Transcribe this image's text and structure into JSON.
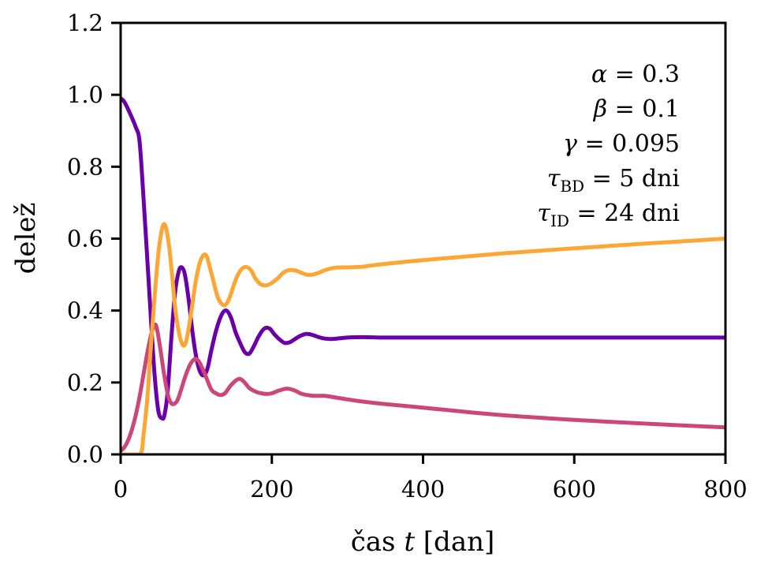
{
  "chart_data": {
    "type": "line",
    "title": "",
    "xlabel_parts": [
      "čas",
      "t",
      "[dan]"
    ],
    "xlabel": "čas t [dan]",
    "ylabel": "delež",
    "xlim": [
      0,
      800
    ],
    "ylim": [
      0,
      1.2
    ],
    "xticks": [
      0,
      200,
      400,
      600,
      800
    ],
    "xtick_labels": [
      "0",
      "200",
      "400",
      "600",
      "800"
    ],
    "yticks": [
      0.0,
      0.2,
      0.4,
      0.6,
      0.8,
      1.0,
      1.2
    ],
    "ytick_labels": [
      "0.0",
      "0.2",
      "0.4",
      "0.6",
      "0.8",
      "1.0",
      "1.2"
    ],
    "grid": false,
    "legend": "none",
    "annotations": [
      {
        "symbol": "α",
        "sub": "",
        "value": "= 0.3"
      },
      {
        "symbol": "β",
        "sub": "",
        "value": "= 0.1"
      },
      {
        "symbol": "γ",
        "sub": "",
        "value": "= 0.095"
      },
      {
        "symbol": "τ",
        "sub": "BD",
        "value": "= 5 dni"
      },
      {
        "symbol": "τ",
        "sub": "ID",
        "value": "= 24 dni"
      }
    ],
    "series": [
      {
        "name": "series-purple",
        "color": "#6a00a8",
        "x": [
          0,
          5,
          12,
          20,
          25,
          30,
          35,
          40,
          45,
          50,
          55,
          58,
          62,
          67,
          72,
          77,
          81,
          85,
          90,
          95,
          100,
          105,
          110,
          115,
          120,
          127,
          134,
          140,
          146,
          152,
          158,
          164,
          170,
          176,
          183,
          190,
          197,
          203,
          210,
          217,
          224,
          230,
          238,
          246,
          254,
          262,
          270,
          280,
          290,
          300,
          320,
          350,
          400,
          500,
          600,
          700,
          800
        ],
        "y": [
          0.99,
          0.98,
          0.95,
          0.91,
          0.87,
          0.72,
          0.55,
          0.38,
          0.22,
          0.12,
          0.1,
          0.11,
          0.17,
          0.32,
          0.45,
          0.51,
          0.52,
          0.5,
          0.43,
          0.34,
          0.27,
          0.23,
          0.22,
          0.24,
          0.29,
          0.35,
          0.39,
          0.4,
          0.38,
          0.34,
          0.31,
          0.285,
          0.28,
          0.3,
          0.33,
          0.35,
          0.35,
          0.335,
          0.32,
          0.31,
          0.312,
          0.32,
          0.33,
          0.335,
          0.332,
          0.326,
          0.322,
          0.321,
          0.323,
          0.325,
          0.326,
          0.325,
          0.325,
          0.325,
          0.325,
          0.325,
          0.325
        ]
      },
      {
        "name": "series-pink",
        "color": "#cc4778",
        "x": [
          0,
          5,
          10,
          15,
          20,
          25,
          30,
          35,
          40,
          45,
          48,
          52,
          57,
          62,
          66,
          70,
          75,
          80,
          86,
          92,
          98,
          103,
          108,
          114,
          120,
          126,
          132,
          138,
          145,
          152,
          158,
          164,
          170,
          178,
          186,
          193,
          200,
          210,
          220,
          230,
          240,
          255,
          270,
          285,
          300,
          320,
          350,
          400,
          500,
          600,
          700,
          800
        ],
        "y": [
          0.01,
          0.02,
          0.04,
          0.07,
          0.11,
          0.16,
          0.22,
          0.28,
          0.33,
          0.36,
          0.35,
          0.3,
          0.23,
          0.17,
          0.145,
          0.14,
          0.15,
          0.18,
          0.22,
          0.25,
          0.265,
          0.26,
          0.24,
          0.21,
          0.18,
          0.17,
          0.165,
          0.17,
          0.19,
          0.205,
          0.21,
          0.2,
          0.185,
          0.175,
          0.17,
          0.168,
          0.17,
          0.178,
          0.183,
          0.178,
          0.168,
          0.163,
          0.163,
          0.158,
          0.153,
          0.147,
          0.14,
          0.13,
          0.11,
          0.096,
          0.085,
          0.075
        ]
      },
      {
        "name": "series-orange",
        "color": "#fca636",
        "x": [
          0,
          15,
          27,
          30,
          35,
          40,
          45,
          50,
          54,
          57,
          60,
          64,
          68,
          72,
          77,
          82,
          86,
          90,
          95,
          100,
          105,
          110,
          114,
          118,
          123,
          128,
          133,
          138,
          143,
          148,
          153,
          158,
          163,
          168,
          173,
          178,
          184,
          190,
          196,
          202,
          208,
          215,
          222,
          230,
          238,
          246,
          254,
          262,
          270,
          280,
          290,
          300,
          320,
          330,
          360,
          400,
          500,
          600,
          700,
          800
        ],
        "y": [
          0.0,
          0.0,
          0.005,
          0.05,
          0.15,
          0.3,
          0.44,
          0.56,
          0.62,
          0.64,
          0.63,
          0.58,
          0.5,
          0.41,
          0.34,
          0.305,
          0.31,
          0.35,
          0.42,
          0.49,
          0.535,
          0.555,
          0.55,
          0.52,
          0.48,
          0.44,
          0.42,
          0.415,
          0.43,
          0.46,
          0.49,
          0.51,
          0.52,
          0.52,
          0.51,
          0.49,
          0.475,
          0.47,
          0.472,
          0.48,
          0.49,
          0.505,
          0.512,
          0.512,
          0.506,
          0.5,
          0.5,
          0.505,
          0.512,
          0.518,
          0.52,
          0.52,
          0.522,
          0.525,
          0.532,
          0.54,
          0.558,
          0.573,
          0.587,
          0.6
        ]
      }
    ]
  }
}
